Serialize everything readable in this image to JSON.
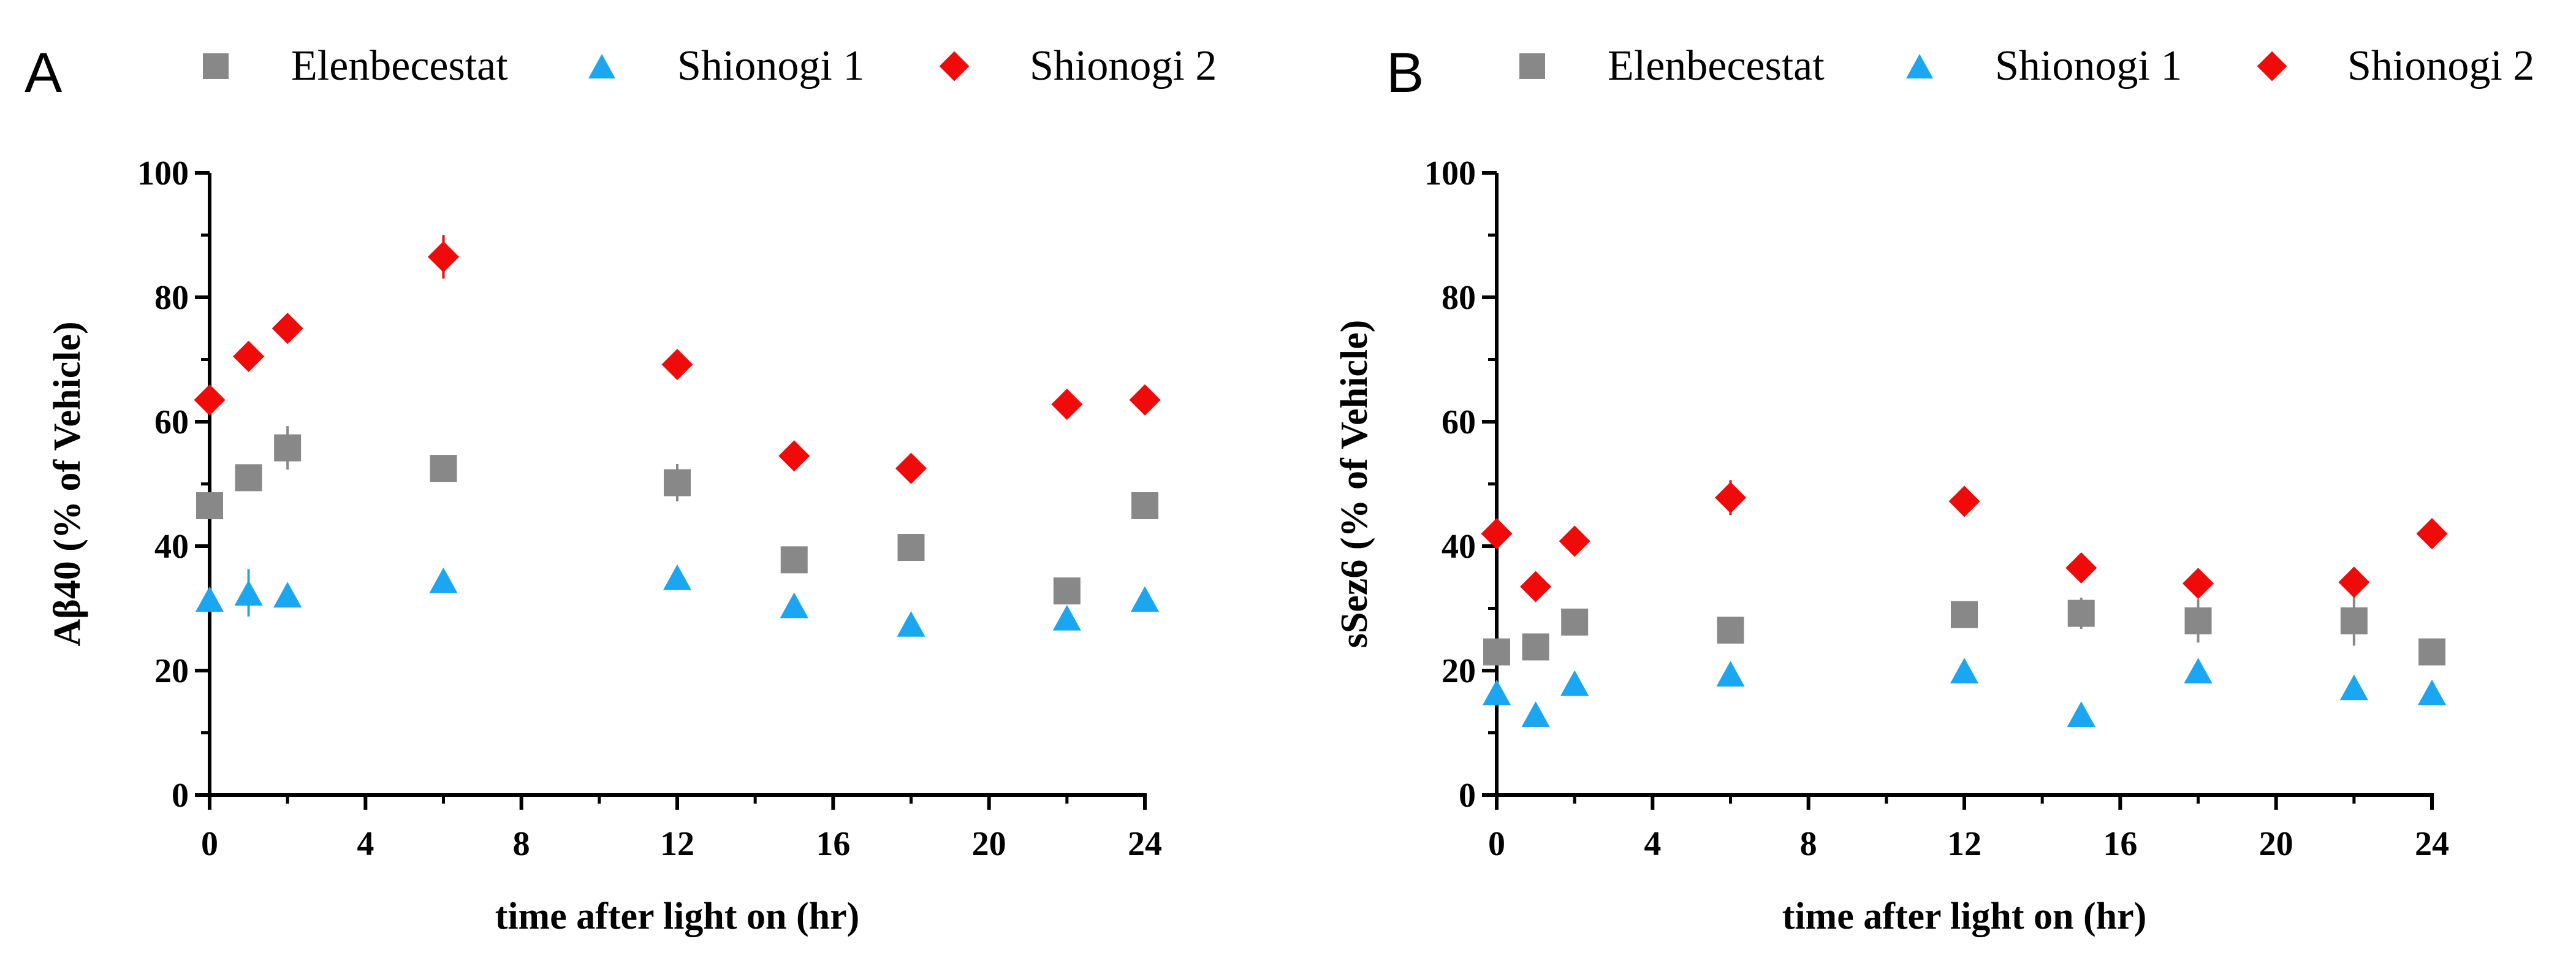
{
  "chart_data": [
    {
      "panel": "A",
      "type": "scatter",
      "xlabel": "time after light on (hr)",
      "ylabel": "Aβ40 (% of Vehicle)",
      "xlim": [
        0,
        24
      ],
      "ylim": [
        0,
        100
      ],
      "xticks": [
        0,
        4,
        8,
        12,
        16,
        20,
        24
      ],
      "yticks": [
        0,
        20,
        40,
        60,
        80,
        100
      ],
      "legend_position": "top",
      "series": [
        {
          "name": "Elenbecestat",
          "marker": "square",
          "color": "#888888",
          "x": [
            0,
            1,
            2,
            6,
            12,
            15,
            18,
            22,
            24
          ],
          "y": [
            46.5,
            51,
            55.8,
            52.5,
            50.2,
            37.8,
            39.8,
            32.8,
            46.5
          ],
          "err": [
            1.2,
            1.5,
            3.5,
            1.2,
            3.0,
            1.2,
            1.2,
            1.0,
            1.2
          ]
        },
        {
          "name": "Shionogi 1",
          "marker": "triangle",
          "color": "#1AA6F0",
          "x": [
            0,
            1,
            2,
            6,
            12,
            15,
            18,
            22,
            24
          ],
          "y": [
            31.5,
            32.5,
            32.2,
            34.5,
            35,
            30.5,
            27.5,
            28.5,
            31.5
          ],
          "err": [
            1.0,
            3.8,
            1.0,
            1.0,
            1.0,
            1.0,
            1.0,
            1.0,
            1.0
          ]
        },
        {
          "name": "Shionogi 2",
          "marker": "diamond",
          "color": "#F00A0A",
          "x": [
            0,
            1,
            2,
            6,
            12,
            15,
            18,
            22,
            24
          ],
          "y": [
            63.5,
            70.5,
            75,
            86.5,
            69.2,
            54.5,
            52.5,
            62.8,
            63.5
          ],
          "err": [
            1.0,
            1.0,
            1.0,
            3.5,
            1.0,
            1.0,
            1.0,
            1.0,
            1.0
          ]
        }
      ]
    },
    {
      "panel": "B",
      "type": "scatter",
      "xlabel": "time after light on (hr)",
      "ylabel": "sSez6 (% of Vehicle)",
      "xlim": [
        0,
        24
      ],
      "ylim": [
        0,
        100
      ],
      "xticks": [
        0,
        4,
        8,
        12,
        16,
        20,
        24
      ],
      "yticks": [
        0,
        20,
        40,
        60,
        80,
        100
      ],
      "legend_position": "top",
      "series": [
        {
          "name": "Elenbecestat",
          "marker": "square",
          "color": "#888888",
          "x": [
            0,
            1,
            2,
            6,
            12,
            15,
            18,
            22,
            24
          ],
          "y": [
            23,
            23.8,
            27.8,
            26.5,
            29,
            29.2,
            28,
            28,
            23
          ],
          "err": [
            1.0,
            1.0,
            1.5,
            1.5,
            1.0,
            2.5,
            3.5,
            4.0,
            1.0
          ]
        },
        {
          "name": "Shionogi 1",
          "marker": "triangle",
          "color": "#1AA6F0",
          "x": [
            0,
            1,
            2,
            6,
            12,
            15,
            18,
            22,
            24
          ],
          "y": [
            16.5,
            13,
            18,
            19.5,
            20,
            13,
            20,
            17.3,
            16.5
          ],
          "err": [
            1.0,
            1.0,
            1.0,
            1.0,
            1.0,
            1.0,
            1.0,
            1.0,
            1.0
          ]
        },
        {
          "name": "Shionogi 2",
          "marker": "diamond",
          "color": "#F00A0A",
          "x": [
            0,
            1,
            2,
            6,
            12,
            15,
            18,
            22,
            24
          ],
          "y": [
            42,
            33.5,
            40.8,
            47.8,
            47.2,
            36.5,
            34,
            34.2,
            42
          ],
          "err": [
            1.0,
            1.0,
            1.0,
            2.8,
            1.0,
            1.0,
            1.0,
            1.5,
            1.0
          ]
        }
      ]
    }
  ]
}
